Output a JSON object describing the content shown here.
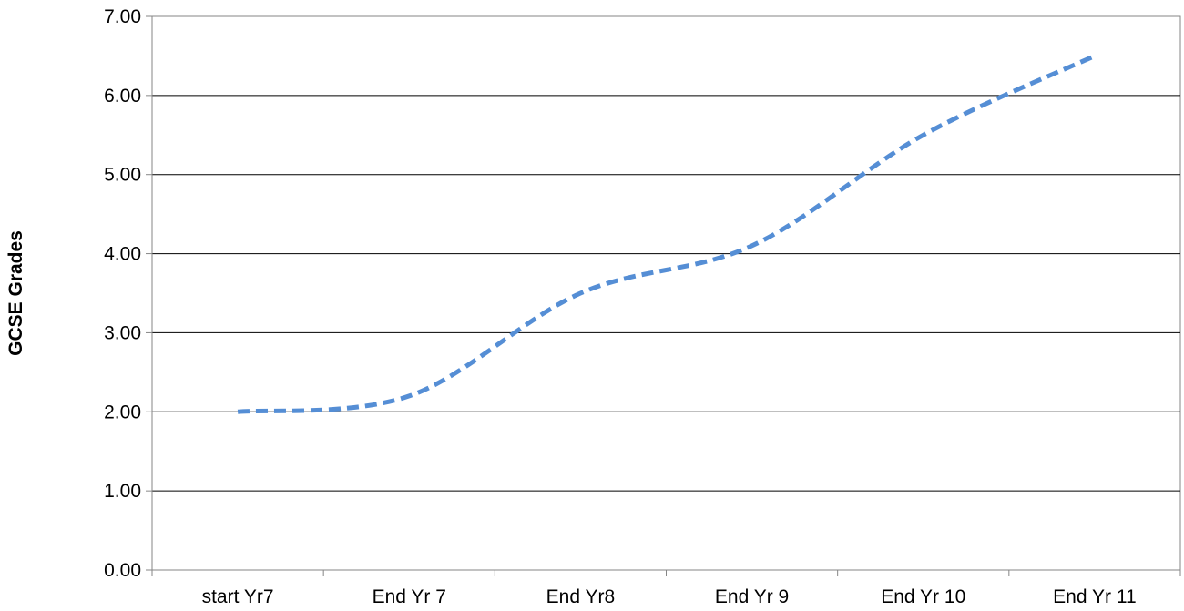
{
  "chart_data": {
    "type": "line",
    "title": "",
    "xlabel": "",
    "ylabel": "GCSE Grades",
    "categories": [
      "start Yr7",
      "End Yr 7",
      "End Yr8",
      "End Yr 9",
      "End Yr 10",
      "End Yr 11"
    ],
    "y_tick_labels": [
      "0.00",
      "1.00",
      "2.00",
      "3.00",
      "4.00",
      "5.00",
      "6.00",
      "7.00"
    ],
    "ylim": [
      0,
      7
    ],
    "grid": true,
    "legend": "none",
    "series": [
      {
        "values": [
          2.0,
          2.2,
          3.5,
          4.1,
          5.5,
          6.5
        ],
        "color": "#558ED5",
        "style": "dashed",
        "smooth": true
      }
    ],
    "axis_color": "#868686",
    "gridline_color": "#000000"
  }
}
